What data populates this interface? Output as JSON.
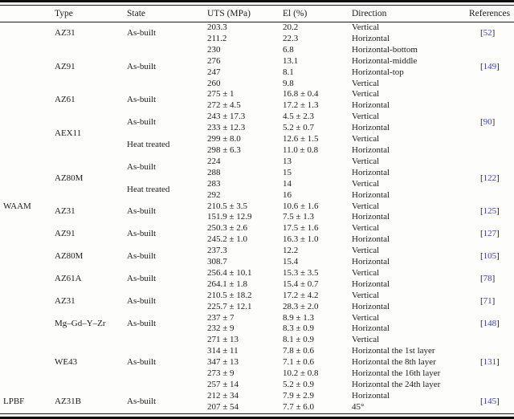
{
  "table": {
    "headers": [
      "",
      "Type",
      "State",
      "UTS (MPa)",
      "El (%)",
      "Direction",
      "References"
    ],
    "ref_link_color": "#3d3dc6",
    "rows": [
      [
        {
          "t": "WAAM",
          "rs": 33,
          "cls": "group"
        },
        {
          "t": "AZ31",
          "rs": 2
        },
        {
          "t": "As-built",
          "rs": 2
        },
        {
          "t": "203.3"
        },
        {
          "t": "20.2"
        },
        {
          "t": "Vertical"
        },
        {
          "ref": "52",
          "rs": 2
        }
      ],
      [
        {
          "t": "211.2"
        },
        {
          "t": "22.3"
        },
        {
          "t": "Horizontal"
        }
      ],
      [
        {
          "t": "AZ91",
          "rs": 4
        },
        {
          "t": "As-built",
          "rs": 4
        },
        {
          "t": "230"
        },
        {
          "t": "6.8"
        },
        {
          "t": "Horizontal-bottom"
        },
        {
          "ref": "149",
          "rs": 4
        }
      ],
      [
        {
          "t": "276"
        },
        {
          "t": "13.1"
        },
        {
          "t": "Horizontal-middle"
        }
      ],
      [
        {
          "t": "247"
        },
        {
          "t": "8.1"
        },
        {
          "t": "Horizontal-top"
        }
      ],
      [
        {
          "t": "260"
        },
        {
          "t": "9.8"
        },
        {
          "t": "Vertical"
        }
      ],
      [
        {
          "t": "AZ61",
          "rs": 2
        },
        {
          "t": "As-built",
          "rs": 2
        },
        {
          "t": "275 ± 1"
        },
        {
          "t": "16.8 ± 0.4"
        },
        {
          "t": "Vertical"
        },
        {
          "ref": "90",
          "rs": 6
        }
      ],
      [
        {
          "t": "272 ± 4.5"
        },
        {
          "t": "17.2 ± 1.3"
        },
        {
          "t": "Horizontal"
        }
      ],
      [
        {
          "t": "AEX11",
          "rs": 4
        },
        {
          "t": "As-built",
          "rs": 2
        },
        {
          "t": "243 ± 17.3"
        },
        {
          "t": "4.5 ± 2.3"
        },
        {
          "t": "Vertical"
        }
      ],
      [
        {
          "t": "233 ± 12.3"
        },
        {
          "t": "5.2 ± 0.7"
        },
        {
          "t": "Horizontal"
        }
      ],
      [
        {
          "t": "Heat treated",
          "rs": 2
        },
        {
          "t": "299 ± 8.0"
        },
        {
          "t": "12.6 ± 1.5"
        },
        {
          "t": "Vertical"
        }
      ],
      [
        {
          "t": "298 ± 6.3"
        },
        {
          "t": "11.0 ± 0.8"
        },
        {
          "t": "Horizontal"
        }
      ],
      [
        {
          "t": "AZ80M",
          "rs": 4
        },
        {
          "t": "As-built",
          "rs": 2
        },
        {
          "t": "224"
        },
        {
          "t": "13"
        },
        {
          "t": "Vertical"
        },
        {
          "ref": "122",
          "rs": 4
        }
      ],
      [
        {
          "t": "288"
        },
        {
          "t": "15"
        },
        {
          "t": "Horizontal"
        }
      ],
      [
        {
          "t": "Heat treated",
          "rs": 2
        },
        {
          "t": "283"
        },
        {
          "t": "14"
        },
        {
          "t": "Vertical"
        }
      ],
      [
        {
          "t": "292"
        },
        {
          "t": "16"
        },
        {
          "t": "Horizontal"
        }
      ],
      [
        {
          "t": "AZ31",
          "rs": 2
        },
        {
          "t": "As-built",
          "rs": 2
        },
        {
          "t": "210.5 ± 3.5"
        },
        {
          "t": "10.6 ± 1.6"
        },
        {
          "t": "Vertical"
        },
        {
          "ref": "125",
          "rs": 2
        }
      ],
      [
        {
          "t": "151.9 ± 12.9"
        },
        {
          "t": "7.5 ± 1.3"
        },
        {
          "t": "Horizontal"
        }
      ],
      [
        {
          "t": "AZ91",
          "rs": 2
        },
        {
          "t": "As-built",
          "rs": 2
        },
        {
          "t": "250.3 ± 2.6"
        },
        {
          "t": "17.5 ± 1.6"
        },
        {
          "t": "Vertical"
        },
        {
          "ref": "127",
          "rs": 2
        }
      ],
      [
        {
          "t": "245.2 ± 1.0"
        },
        {
          "t": "16.3 ± 1.0"
        },
        {
          "t": "Horizontal"
        }
      ],
      [
        {
          "t": "AZ80M",
          "rs": 2
        },
        {
          "t": "As-built",
          "rs": 2
        },
        {
          "t": "237.3"
        },
        {
          "t": "12.2"
        },
        {
          "t": "Vertical"
        },
        {
          "ref": "105",
          "rs": 2
        }
      ],
      [
        {
          "t": "308.7"
        },
        {
          "t": "15.4"
        },
        {
          "t": "Horizontal"
        }
      ],
      [
        {
          "t": "AZ61A",
          "rs": 2
        },
        {
          "t": "As-built",
          "rs": 2
        },
        {
          "t": "256.4 ± 10.1"
        },
        {
          "t": "15.3 ± 3.5"
        },
        {
          "t": "Vertical"
        },
        {
          "ref": "78",
          "rs": 2
        }
      ],
      [
        {
          "t": "264.1 ± 1.8"
        },
        {
          "t": "15.4 ± 0.7"
        },
        {
          "t": "Horizontal"
        }
      ],
      [
        {
          "t": "AZ31",
          "rs": 2
        },
        {
          "t": "As-built",
          "rs": 2
        },
        {
          "t": "210.5 ± 18.2"
        },
        {
          "t": "17.2 ± 4.2"
        },
        {
          "t": "Vertical"
        },
        {
          "ref": "71",
          "rs": 2
        }
      ],
      [
        {
          "t": "225.7 ± 12.1"
        },
        {
          "t": "28.3 ± 2.0"
        },
        {
          "t": "Horizontal"
        }
      ],
      [
        {
          "t": "Mg–Gd–Y–Zr",
          "rs": 2
        },
        {
          "t": "As-built",
          "rs": 2
        },
        {
          "t": "237 ± 7"
        },
        {
          "t": "8.9 ± 1.3"
        },
        {
          "t": "Vertical"
        },
        {
          "ref": "148",
          "rs": 2
        }
      ],
      [
        {
          "t": "232 ± 9"
        },
        {
          "t": "8.3 ± 0.9"
        },
        {
          "t": "Horizontal"
        }
      ],
      [
        {
          "t": "WE43",
          "rs": 5
        },
        {
          "t": "As-built",
          "rs": 5
        },
        {
          "t": "271 ± 13"
        },
        {
          "t": "8.1 ± 0.9"
        },
        {
          "t": "Vertical"
        },
        {
          "ref": "131",
          "rs": 5
        }
      ],
      [
        {
          "t": "314 ± 11"
        },
        {
          "t": "7.8 ± 0.6"
        },
        {
          "t": "Horizontal the 1st layer"
        }
      ],
      [
        {
          "t": "347 ± 13"
        },
        {
          "t": "7.1 ± 0.6"
        },
        {
          "t": "Horizontal the 8th layer"
        }
      ],
      [
        {
          "t": "273 ± 9"
        },
        {
          "t": "10.2 ± 0.8"
        },
        {
          "t": "Horizontal the 16th layer"
        }
      ],
      [
        {
          "t": "257 ± 14"
        },
        {
          "t": "5.2 ± 0.9"
        },
        {
          "t": "Horizontal the 24th layer"
        }
      ],
      [
        {
          "t": "LPBF",
          "rs": 2,
          "cls": "group"
        },
        {
          "t": "AZ31B",
          "rs": 2
        },
        {
          "t": "As-built",
          "rs": 2
        },
        {
          "t": "212 ± 34"
        },
        {
          "t": "7.9 ± 2.9"
        },
        {
          "t": "Horizontal"
        },
        {
          "ref": "145",
          "rs": 2
        }
      ],
      [
        {
          "t": "207 ± 54"
        },
        {
          "t": "7.7 ± 6.0"
        },
        {
          "t": "45°"
        }
      ]
    ]
  }
}
